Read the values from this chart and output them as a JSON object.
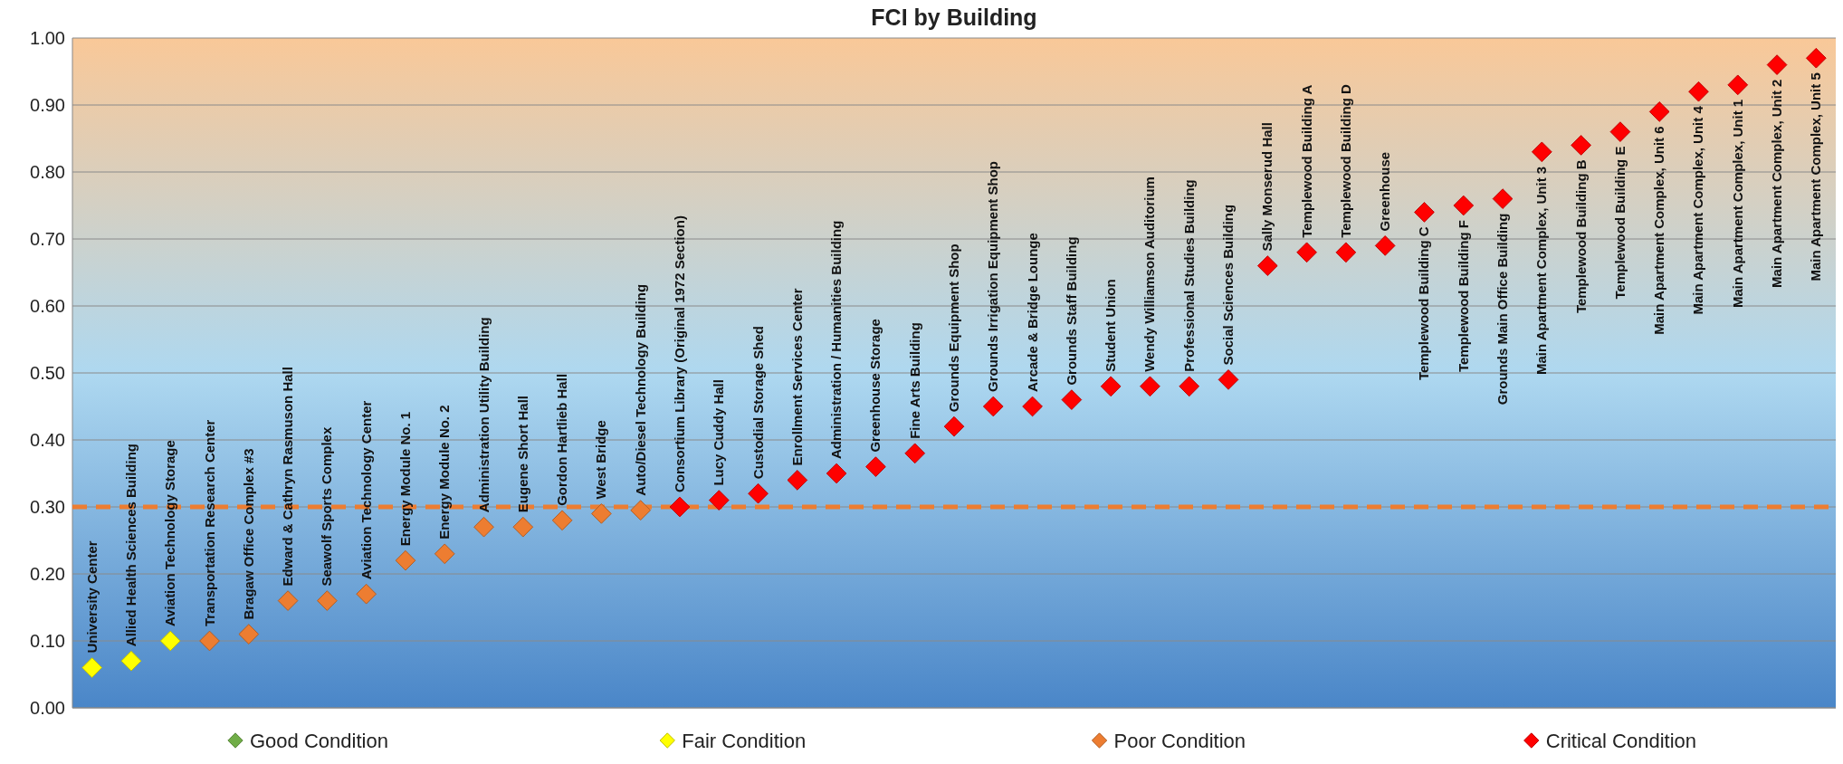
{
  "chart_data": {
    "type": "scatter",
    "title": "FCI by Building",
    "categories": [
      "University Center",
      "Allied Health Sciences Building",
      "Aviation Technology Storage",
      "Transportation Research Center",
      "Bragaw Office Complex #3",
      "Edward & Cathryn Rasmuson Hall",
      "Seawolf Sports Complex",
      "Aviation Technology Center",
      "Energy Module No. 1",
      "Energy Module No. 2",
      "Administration Utility Building",
      "Eugene Short Hall",
      "Gordon Hartlieb Hall",
      "West Bridge",
      "Auto/Diesel Technology Building",
      "Consortium Library (Original 1972 Section)",
      "Lucy Cuddy Hall",
      "Custodial Storage Shed",
      "Enrollment Services Center",
      "Administration / Humanities Building",
      "Greenhouse Storage",
      "Fine Arts Building",
      "Grounds Equipment Shop",
      "Grounds Irrigation Equipment Shop",
      "Arcade & Bridge Lounge",
      "Grounds Staff Building",
      "Student Union",
      "Wendy Williamson Auditorium",
      "Professional Studies Building",
      "Social Sciences Building",
      "Sally Monserud Hall",
      "Templewood Building A",
      "Templewood Building D",
      "Greenhouse",
      "Templewood Building C",
      "Templewood Building F",
      "Grounds Main Office Building",
      "Main Apartment Complex, Unit 3",
      "Templewood Building B",
      "Templewood Building E",
      "Main Apartment Complex, Unit 6",
      "Main Apartment Complex, Unit 4",
      "Main Apartment Complex, Unit 1",
      "Main Apartment Complex, Unit 2",
      "Main Apartment Complex, Unit 5"
    ],
    "series": [
      {
        "name": "Good Condition",
        "color": "#70ad47",
        "values": [
          null,
          null,
          null,
          null,
          null,
          null,
          null,
          null,
          null,
          null,
          null,
          null,
          null,
          null,
          null,
          null,
          null,
          null,
          null,
          null,
          null,
          null,
          null,
          null,
          null,
          null,
          null,
          null,
          null,
          null,
          null,
          null,
          null,
          null,
          null,
          null,
          null,
          null,
          null,
          null,
          null,
          null,
          null,
          null,
          null
        ]
      },
      {
        "name": "Fair Condition",
        "color": "#ffff00",
        "values": [
          0.06,
          0.07,
          0.1,
          null,
          null,
          null,
          null,
          null,
          null,
          null,
          null,
          null,
          null,
          null,
          null,
          null,
          null,
          null,
          null,
          null,
          null,
          null,
          null,
          null,
          null,
          null,
          null,
          null,
          null,
          null,
          null,
          null,
          null,
          null,
          null,
          null,
          null,
          null,
          null,
          null,
          null,
          null,
          null,
          null,
          null
        ]
      },
      {
        "name": "Poor Condition",
        "color": "#ed7d31",
        "values": [
          null,
          null,
          null,
          0.1,
          0.11,
          0.16,
          0.16,
          0.17,
          0.22,
          0.23,
          0.27,
          0.27,
          0.28,
          0.29,
          0.295,
          null,
          null,
          null,
          null,
          null,
          null,
          null,
          null,
          null,
          null,
          null,
          null,
          null,
          null,
          null,
          null,
          null,
          null,
          null,
          null,
          null,
          null,
          null,
          null,
          null,
          null,
          null,
          null,
          null,
          null
        ]
      },
      {
        "name": "Critical Condition",
        "color": "#ff0000",
        "values": [
          null,
          null,
          null,
          null,
          null,
          null,
          null,
          null,
          null,
          null,
          null,
          null,
          null,
          null,
          null,
          0.3,
          0.31,
          0.32,
          0.34,
          0.35,
          0.36,
          0.38,
          0.42,
          0.45,
          0.45,
          0.46,
          0.48,
          0.48,
          0.48,
          0.49,
          0.66,
          0.68,
          0.68,
          0.69,
          0.74,
          0.75,
          0.76,
          0.83,
          0.84,
          0.86,
          0.89,
          0.92,
          0.93,
          0.96,
          0.97
        ]
      }
    ],
    "ylim": [
      0,
      1
    ],
    "yticks": [
      {
        "value": 0,
        "label": "0.00"
      },
      {
        "value": 0.1,
        "label": "0.10"
      },
      {
        "value": 0.2,
        "label": "0.20"
      },
      {
        "value": 0.3,
        "label": "0.30"
      },
      {
        "value": 0.4,
        "label": "0.40"
      },
      {
        "value": 0.5,
        "label": "0.50"
      },
      {
        "value": 0.6,
        "label": "0.60"
      },
      {
        "value": 0.7,
        "label": "0.70"
      },
      {
        "value": 0.8,
        "label": "0.80"
      },
      {
        "value": 0.9,
        "label": "0.90"
      },
      {
        "value": 1,
        "label": "1.00"
      }
    ],
    "ref_lines": [
      {
        "axis": "y",
        "value": 0.3,
        "color": "#ed7d31",
        "line_style": "dashed"
      }
    ],
    "grid": "y",
    "legend": "bottom",
    "marker": "diamond"
  }
}
